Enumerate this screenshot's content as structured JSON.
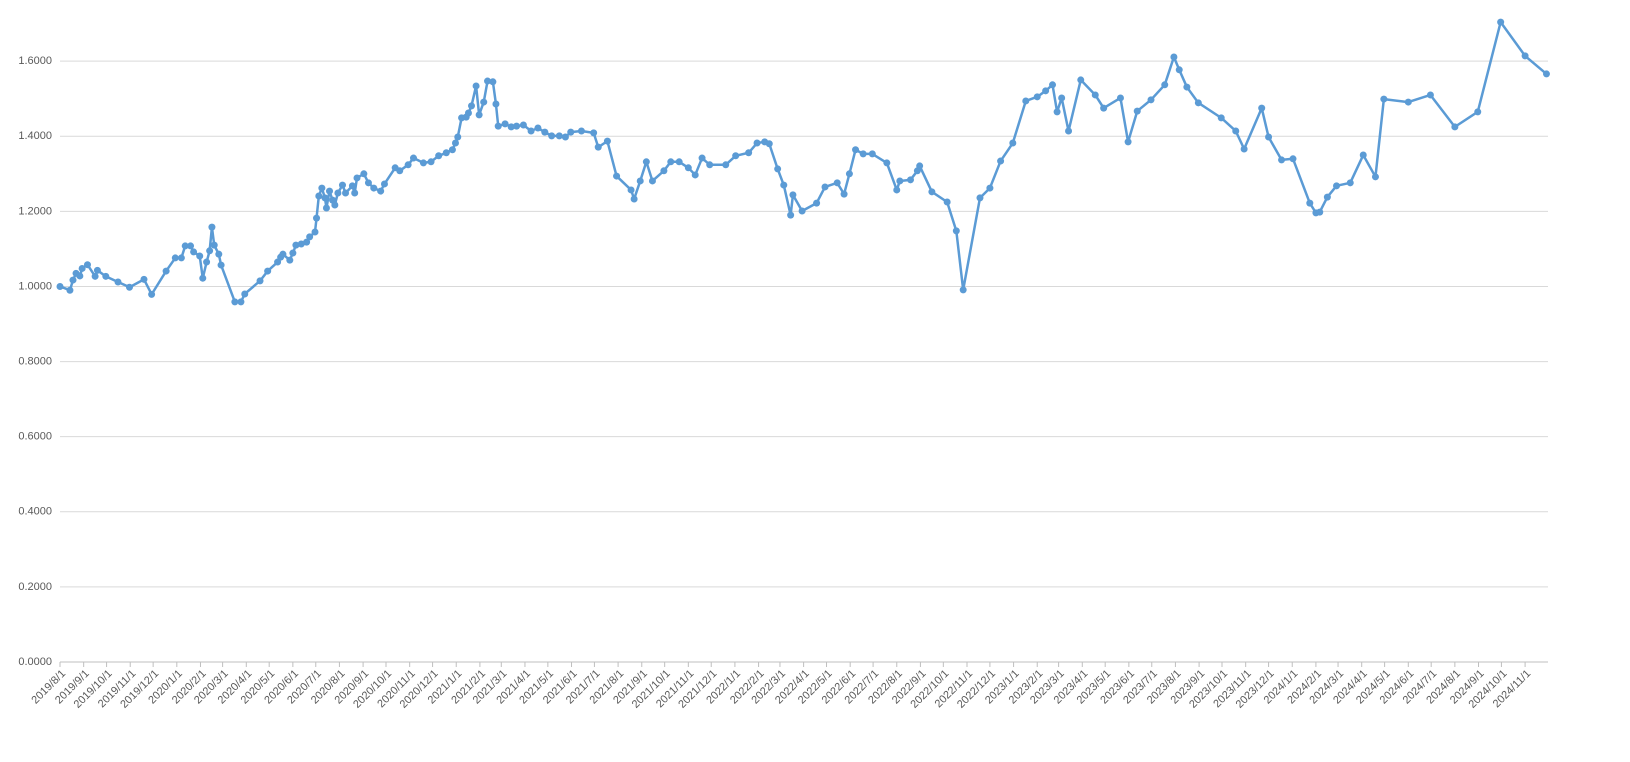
{
  "chart_data": {
    "type": "line",
    "x": [
      "2019-08-01",
      "2019-08-14",
      "2019-08-18",
      "2019-08-22",
      "2019-08-27",
      "2019-08-30",
      "2019-09-06",
      "2019-09-16",
      "2019-09-19",
      "2019-09-30",
      "2019-10-16",
      "2019-10-31",
      "2019-11-19",
      "2019-11-29",
      "2019-12-18",
      "2019-12-30",
      "2020-01-07",
      "2020-01-12",
      "2020-01-19",
      "2020-01-23",
      "2020-01-31",
      "2020-02-04",
      "2020-02-09",
      "2020-02-13",
      "2020-02-16",
      "2020-02-19",
      "2020-02-25",
      "2020-02-28",
      "2020-03-17",
      "2020-03-25",
      "2020-03-30",
      "2020-04-19",
      "2020-04-29",
      "2020-05-12",
      "2020-05-16",
      "2020-05-19",
      "2020-05-28",
      "2020-06-01",
      "2020-06-05",
      "2020-06-12",
      "2020-06-19",
      "2020-06-23",
      "2020-06-30",
      "2020-07-02",
      "2020-07-05",
      "2020-07-09",
      "2020-07-13",
      "2020-07-15",
      "2020-07-19",
      "2020-07-23",
      "2020-07-26",
      "2020-07-30",
      "2020-08-05",
      "2020-08-09",
      "2020-08-18",
      "2020-08-21",
      "2020-08-24",
      "2020-09-02",
      "2020-09-08",
      "2020-09-15",
      "2020-09-24",
      "2020-09-29",
      "2020-10-13",
      "2020-10-19",
      "2020-10-30",
      "2020-11-06",
      "2020-11-19",
      "2020-11-29",
      "2020-12-09",
      "2020-12-19",
      "2020-12-27",
      "2020-12-31",
      "2021-01-03",
      "2021-01-08",
      "2021-01-14",
      "2021-01-17",
      "2021-01-21",
      "2021-01-27",
      "2021-01-31",
      "2021-02-06",
      "2021-02-11",
      "2021-02-18",
      "2021-02-22",
      "2021-02-25",
      "2021-03-06",
      "2021-03-14",
      "2021-03-21",
      "2021-03-30",
      "2021-04-09",
      "2021-04-18",
      "2021-04-27",
      "2021-05-06",
      "2021-05-16",
      "2021-05-24",
      "2021-05-31",
      "2021-06-14",
      "2021-06-30",
      "2021-07-06",
      "2021-07-18",
      "2021-07-30",
      "2021-08-18",
      "2021-08-22",
      "2021-08-30",
      "2021-09-07",
      "2021-09-15",
      "2021-09-30",
      "2021-10-09",
      "2021-10-20",
      "2021-11-01",
      "2021-11-10",
      "2021-11-19",
      "2021-11-29",
      "2021-12-20",
      "2022-01-02",
      "2022-01-19",
      "2022-01-30",
      "2022-02-09",
      "2022-02-15",
      "2022-02-26",
      "2022-03-06",
      "2022-03-15",
      "2022-03-18",
      "2022-03-30",
      "2022-04-18",
      "2022-04-29",
      "2022-05-15",
      "2022-05-24",
      "2022-05-31",
      "2022-06-08",
      "2022-06-18",
      "2022-06-30",
      "2022-07-19",
      "2022-08-01",
      "2022-08-05",
      "2022-08-19",
      "2022-08-28",
      "2022-08-31",
      "2022-09-16",
      "2022-10-06",
      "2022-10-18",
      "2022-10-27",
      "2022-11-18",
      "2022-12-01",
      "2022-12-15",
      "2022-12-31",
      "2023-01-17",
      "2023-02-01",
      "2023-02-12",
      "2023-02-21",
      "2023-02-27",
      "2023-03-05",
      "2023-03-14",
      "2023-03-30",
      "2023-04-18",
      "2023-04-29",
      "2023-05-21",
      "2023-05-31",
      "2023-06-12",
      "2023-06-30",
      "2023-07-18",
      "2023-07-30",
      "2023-08-06",
      "2023-08-16",
      "2023-08-31",
      "2023-09-30",
      "2023-10-19",
      "2023-10-30",
      "2023-11-22",
      "2023-12-01",
      "2023-12-18",
      "2024-01-02",
      "2024-01-24",
      "2024-02-01",
      "2024-02-06",
      "2024-02-16",
      "2024-02-28",
      "2024-03-17",
      "2024-04-03",
      "2024-04-19",
      "2024-04-30",
      "2024-06-01",
      "2024-06-30",
      "2024-08-01",
      "2024-08-31",
      "2024-09-30",
      "2024-11-01",
      "2024-11-29"
    ],
    "series": [
      {
        "color": "#5b9bd5",
        "values": [
          1.0,
          0.99,
          1.017,
          1.035,
          1.028,
          1.048,
          1.058,
          1.027,
          1.043,
          1.027,
          1.012,
          0.998,
          1.019,
          0.979,
          1.041,
          1.076,
          1.076,
          1.108,
          1.108,
          1.092,
          1.081,
          1.022,
          1.065,
          1.095,
          1.158,
          1.11,
          1.086,
          1.057,
          0.959,
          0.959,
          0.98,
          1.015,
          1.041,
          1.065,
          1.078,
          1.086,
          1.07,
          1.089,
          1.11,
          1.113,
          1.118,
          1.132,
          1.145,
          1.182,
          1.241,
          1.262,
          1.236,
          1.209,
          1.254,
          1.23,
          1.217,
          1.249,
          1.27,
          1.249,
          1.268,
          1.249,
          1.289,
          1.3,
          1.276,
          1.262,
          1.254,
          1.273,
          1.316,
          1.308,
          1.324,
          1.342,
          1.329,
          1.332,
          1.348,
          1.356,
          1.364,
          1.382,
          1.398,
          1.449,
          1.451,
          1.462,
          1.481,
          1.534,
          1.457,
          1.491,
          1.547,
          1.545,
          1.486,
          1.427,
          1.433,
          1.425,
          1.427,
          1.43,
          1.414,
          1.422,
          1.411,
          1.401,
          1.401,
          1.398,
          1.411,
          1.414,
          1.409,
          1.371,
          1.387,
          1.294,
          1.257,
          1.233,
          1.281,
          1.332,
          1.281,
          1.308,
          1.332,
          1.332,
          1.316,
          1.297,
          1.342,
          1.324,
          1.324,
          1.348,
          1.356,
          1.382,
          1.385,
          1.38,
          1.313,
          1.27,
          1.19,
          1.244,
          1.201,
          1.222,
          1.265,
          1.276,
          1.246,
          1.3,
          1.364,
          1.353,
          1.353,
          1.329,
          1.257,
          1.281,
          1.284,
          1.308,
          1.321,
          1.252,
          1.225,
          1.148,
          0.991,
          1.236,
          1.262,
          1.334,
          1.382,
          1.494,
          1.505,
          1.521,
          1.537,
          1.465,
          1.502,
          1.414,
          1.55,
          1.51,
          1.475,
          1.502,
          1.385,
          1.467,
          1.497,
          1.537,
          1.611,
          1.577,
          1.531,
          1.489,
          1.449,
          1.414,
          1.366,
          1.475,
          1.398,
          1.337,
          1.34,
          1.222,
          1.196,
          1.198,
          1.238,
          1.268,
          1.276,
          1.35,
          1.292,
          1.499,
          1.491,
          1.51,
          1.425,
          1.465,
          1.704,
          1.614,
          1.566
        ]
      }
    ],
    "xlim": [
      "2019-08-01",
      "2024-12-01"
    ],
    "xticks": [
      {
        "value": "2019-08-01",
        "label": "2019/8/1"
      },
      {
        "value": "2019-09-01",
        "label": "2019/9/1"
      },
      {
        "value": "2019-10-01",
        "label": "2019/10/1"
      },
      {
        "value": "2019-11-01",
        "label": "2019/11/1"
      },
      {
        "value": "2019-12-01",
        "label": "2019/12/1"
      },
      {
        "value": "2020-01-01",
        "label": "2020/1/1"
      },
      {
        "value": "2020-02-01",
        "label": "2020/2/1"
      },
      {
        "value": "2020-03-01",
        "label": "2020/3/1"
      },
      {
        "value": "2020-04-01",
        "label": "2020/4/1"
      },
      {
        "value": "2020-05-01",
        "label": "2020/5/1"
      },
      {
        "value": "2020-06-01",
        "label": "2020/6/1"
      },
      {
        "value": "2020-07-01",
        "label": "2020/7/1"
      },
      {
        "value": "2020-08-01",
        "label": "2020/8/1"
      },
      {
        "value": "2020-09-01",
        "label": "2020/9/1"
      },
      {
        "value": "2020-10-01",
        "label": "2020/10/1"
      },
      {
        "value": "2020-11-01",
        "label": "2020/11/1"
      },
      {
        "value": "2020-12-01",
        "label": "2020/12/1"
      },
      {
        "value": "2021-01-01",
        "label": "2021/1/1"
      },
      {
        "value": "2021-02-01",
        "label": "2021/2/1"
      },
      {
        "value": "2021-03-01",
        "label": "2021/3/1"
      },
      {
        "value": "2021-04-01",
        "label": "2021/4/1"
      },
      {
        "value": "2021-05-01",
        "label": "2021/5/1"
      },
      {
        "value": "2021-06-01",
        "label": "2021/6/1"
      },
      {
        "value": "2021-07-01",
        "label": "2021/7/1"
      },
      {
        "value": "2021-08-01",
        "label": "2021/8/1"
      },
      {
        "value": "2021-09-01",
        "label": "2021/9/1"
      },
      {
        "value": "2021-10-01",
        "label": "2021/10/1"
      },
      {
        "value": "2021-11-01",
        "label": "2021/11/1"
      },
      {
        "value": "2021-12-01",
        "label": "2021/12/1"
      },
      {
        "value": "2022-01-01",
        "label": "2022/1/1"
      },
      {
        "value": "2022-02-01",
        "label": "2022/2/1"
      },
      {
        "value": "2022-03-01",
        "label": "2022/3/1"
      },
      {
        "value": "2022-04-01",
        "label": "2022/4/1"
      },
      {
        "value": "2022-05-01",
        "label": "2022/5/1"
      },
      {
        "value": "2022-06-01",
        "label": "2022/6/1"
      },
      {
        "value": "2022-07-01",
        "label": "2022/7/1"
      },
      {
        "value": "2022-08-01",
        "label": "2022/8/1"
      },
      {
        "value": "2022-09-01",
        "label": "2022/9/1"
      },
      {
        "value": "2022-10-01",
        "label": "2022/10/1"
      },
      {
        "value": "2022-11-01",
        "label": "2022/11/1"
      },
      {
        "value": "2022-12-01",
        "label": "2022/12/1"
      },
      {
        "value": "2023-01-01",
        "label": "2023/1/1"
      },
      {
        "value": "2023-02-01",
        "label": "2023/2/1"
      },
      {
        "value": "2023-03-01",
        "label": "2023/3/1"
      },
      {
        "value": "2023-04-01",
        "label": "2023/4/1"
      },
      {
        "value": "2023-05-01",
        "label": "2023/5/1"
      },
      {
        "value": "2023-06-01",
        "label": "2023/6/1"
      },
      {
        "value": "2023-07-01",
        "label": "2023/7/1"
      },
      {
        "value": "2023-08-01",
        "label": "2023/8/1"
      },
      {
        "value": "2023-09-01",
        "label": "2023/9/1"
      },
      {
        "value": "2023-10-01",
        "label": "2023/10/1"
      },
      {
        "value": "2023-11-01",
        "label": "2023/11/1"
      },
      {
        "value": "2023-12-01",
        "label": "2023/12/1"
      },
      {
        "value": "2024-01-01",
        "label": "2024/1/1"
      },
      {
        "value": "2024-02-01",
        "label": "2024/2/1"
      },
      {
        "value": "2024-03-01",
        "label": "2024/3/1"
      },
      {
        "value": "2024-04-01",
        "label": "2024/4/1"
      },
      {
        "value": "2024-05-01",
        "label": "2024/5/1"
      },
      {
        "value": "2024-06-01",
        "label": "2024/6/1"
      },
      {
        "value": "2024-07-01",
        "label": "2024/7/1"
      },
      {
        "value": "2024-08-01",
        "label": "2024/8/1"
      },
      {
        "value": "2024-09-01",
        "label": "2024/9/1"
      },
      {
        "value": "2024-10-01",
        "label": "2024/10/1"
      },
      {
        "value": "2024-11-01",
        "label": "2024/11/1"
      }
    ],
    "ylim": [
      0,
      1.7
    ],
    "yticks": [
      {
        "value": 0,
        "label": "0.0000"
      },
      {
        "value": 0.2,
        "label": "0.2000"
      },
      {
        "value": 0.4,
        "label": "0.4000"
      },
      {
        "value": 0.6,
        "label": "0.6000"
      },
      {
        "value": 0.8,
        "label": "0.8000"
      },
      {
        "value": 1.0,
        "label": "1.0000"
      },
      {
        "value": 1.2,
        "label": "1.2000"
      },
      {
        "value": 1.4,
        "label": "1.4000"
      },
      {
        "value": 1.6,
        "label": "1.6000"
      }
    ],
    "grid": true,
    "markers": true
  }
}
